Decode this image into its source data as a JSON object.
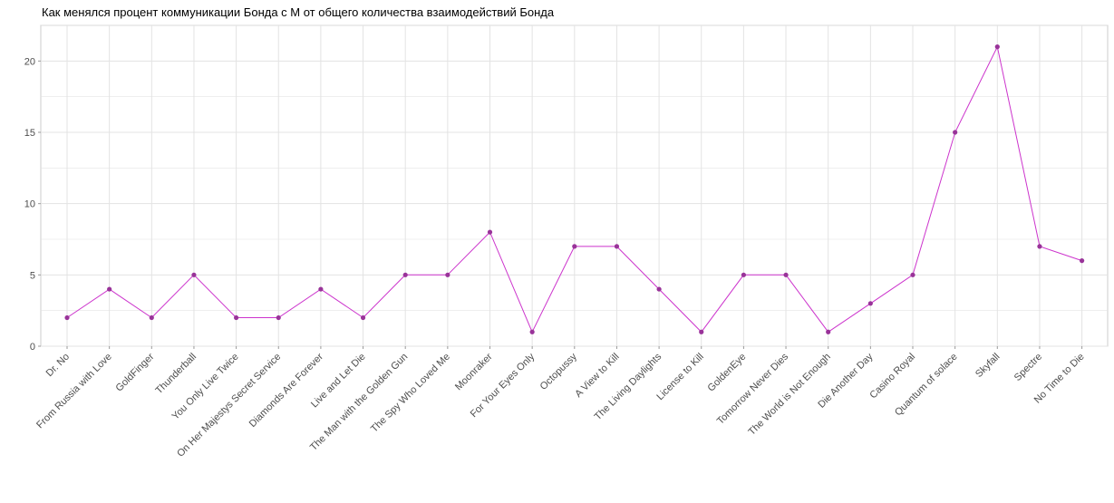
{
  "chart_data": {
    "type": "line",
    "title": "Как менялся процент коммуникации Бонда с М от общего количества взаимодействий Бонда",
    "xlabel": "",
    "ylabel": "",
    "ylim": [
      0,
      22.5
    ],
    "y_ticks": [
      0,
      5,
      10,
      15,
      20
    ],
    "grid": true,
    "legend": "none",
    "line_color": "#cc33cc",
    "point_color": "#993399",
    "categories": [
      "Dr. No",
      "From Russia with Love",
      "GoldFinger",
      "Thunderball",
      "You Only Live Twice",
      "On Her Majestys Secret Service",
      "Diamonds Are Forever",
      "Live and Let Die",
      "The Man with the Golden Gun",
      "The Spy Who Loved Me",
      "Moonraker",
      "For Your Eyes Only",
      "Octopussy",
      "A View to Kill",
      "The Living Daylights",
      "License to Kill",
      "GoldenEye",
      "Tomorrow Never Dies",
      "The World is Not Enough",
      "Die Another Day",
      "Casino Royal",
      "Quantum of solace",
      "Skyfall",
      "Spectre",
      "No Time to Die"
    ],
    "values": [
      2,
      4,
      2,
      5,
      2,
      2,
      4,
      2,
      5,
      5,
      8,
      1,
      7,
      7,
      4,
      1,
      5,
      5,
      1,
      3,
      5,
      15,
      21,
      7,
      6
    ]
  }
}
